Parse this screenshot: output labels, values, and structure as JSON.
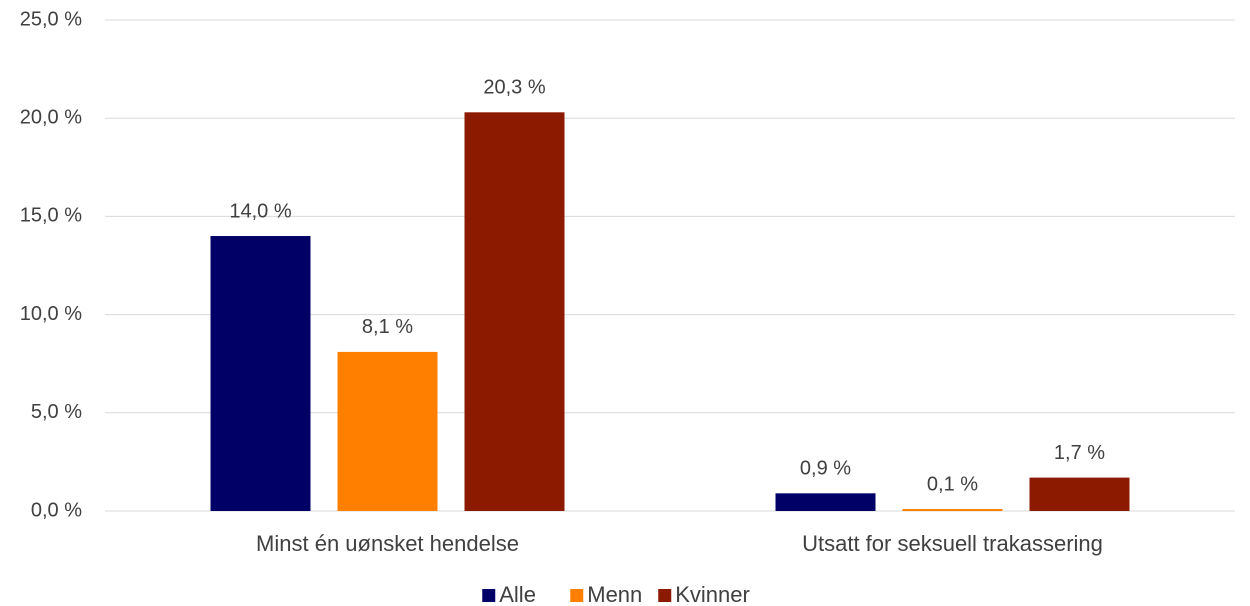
{
  "chart_data": {
    "type": "bar",
    "categories": [
      "Minst én uønsket hendelse",
      "Utsatt for seksuell trakassering"
    ],
    "series": [
      {
        "name": "Alle",
        "color": "#000066",
        "values": [
          14.0,
          0.9
        ],
        "value_labels": [
          "14,0 %",
          "0,9 %"
        ]
      },
      {
        "name": "Menn",
        "color": "#ff8000",
        "values": [
          8.1,
          0.1
        ],
        "value_labels": [
          "8,1 %",
          "0,1 %"
        ]
      },
      {
        "name": "Kvinner",
        "color": "#8b1a00",
        "values": [
          20.3,
          1.7
        ],
        "value_labels": [
          "20,3 %",
          "1,7 %"
        ]
      }
    ],
    "ylim": [
      0,
      25
    ],
    "yticks": [
      {
        "value": 0,
        "label": "0,0 %"
      },
      {
        "value": 5,
        "label": "5,0 %"
      },
      {
        "value": 10,
        "label": "10,0 %"
      },
      {
        "value": 15,
        "label": "15,0 %"
      },
      {
        "value": 20,
        "label": "20,0 %"
      },
      {
        "value": 25,
        "label": "25,0 %"
      }
    ],
    "grid": true,
    "legend": "bottom"
  }
}
